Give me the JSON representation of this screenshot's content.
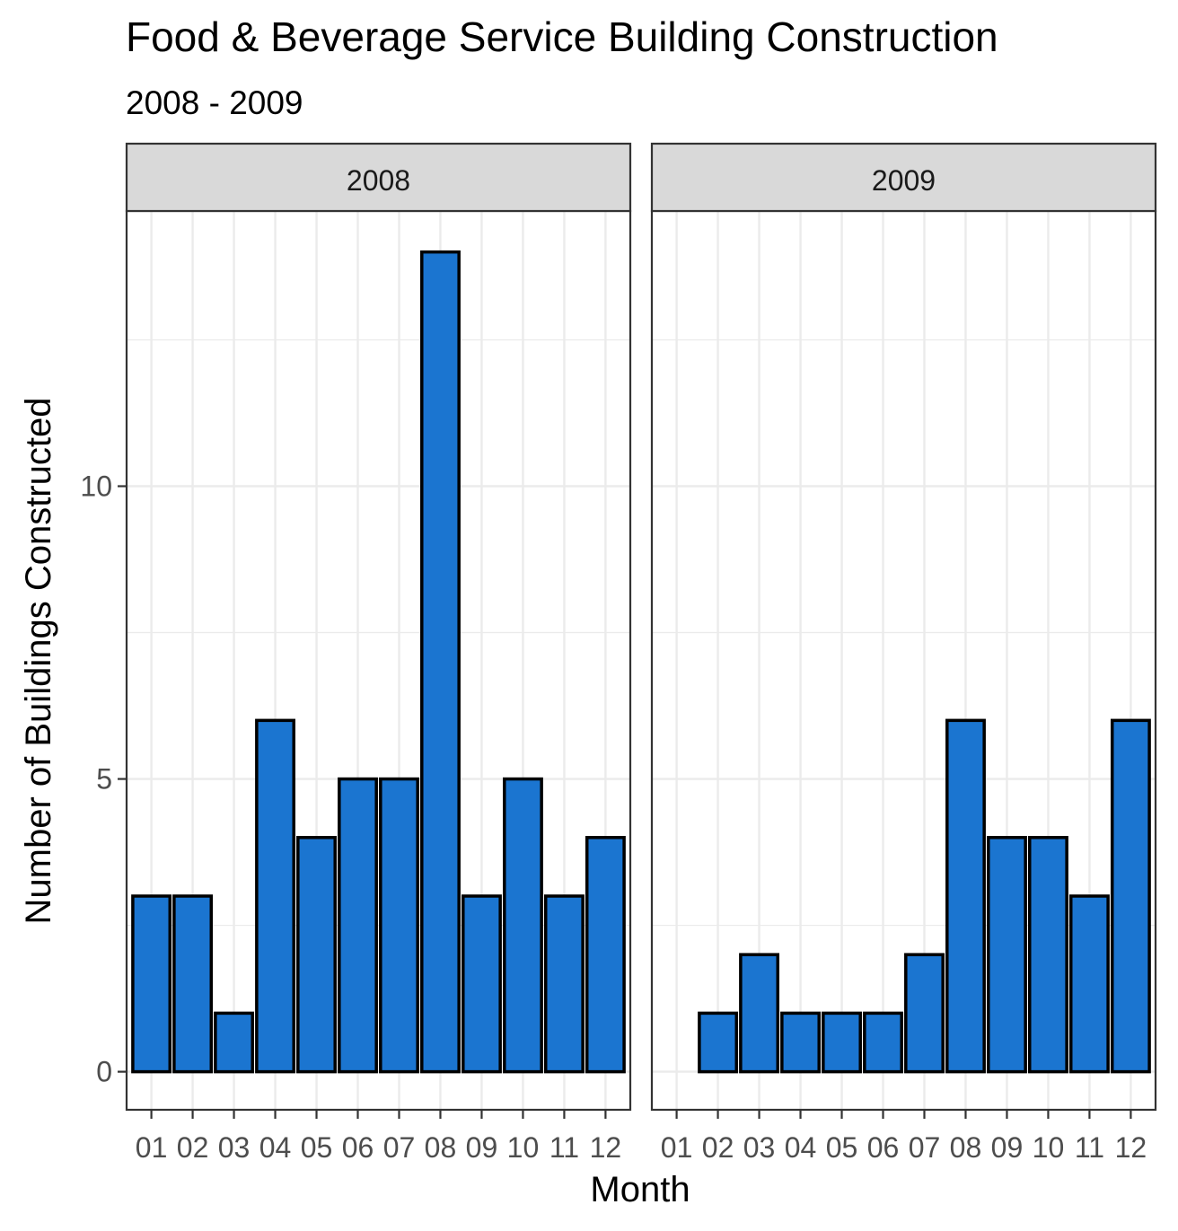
{
  "chart_data": {
    "type": "bar",
    "title": "Food & Beverage Service Building Construction",
    "subtitle": "2008 - 2009",
    "xlabel": "Month",
    "ylabel": "Number of Buildings Constructed",
    "categories": [
      "01",
      "02",
      "03",
      "04",
      "05",
      "06",
      "07",
      "08",
      "09",
      "10",
      "11",
      "12"
    ],
    "ylim": [
      -0.65,
      14.7
    ],
    "yticks": [
      0,
      5,
      10
    ],
    "ytick_labels": [
      "0",
      "5",
      "10"
    ],
    "grid": true,
    "bar_fill": "#1B75D0",
    "bar_outline": "#000000",
    "panels": [
      {
        "name": "2008",
        "values": [
          3,
          3,
          1,
          6,
          4,
          5,
          5,
          14,
          3,
          5,
          3,
          4
        ]
      },
      {
        "name": "2009",
        "values": [
          0,
          1,
          2,
          1,
          1,
          1,
          2,
          6,
          4,
          4,
          3,
          6
        ]
      }
    ]
  }
}
